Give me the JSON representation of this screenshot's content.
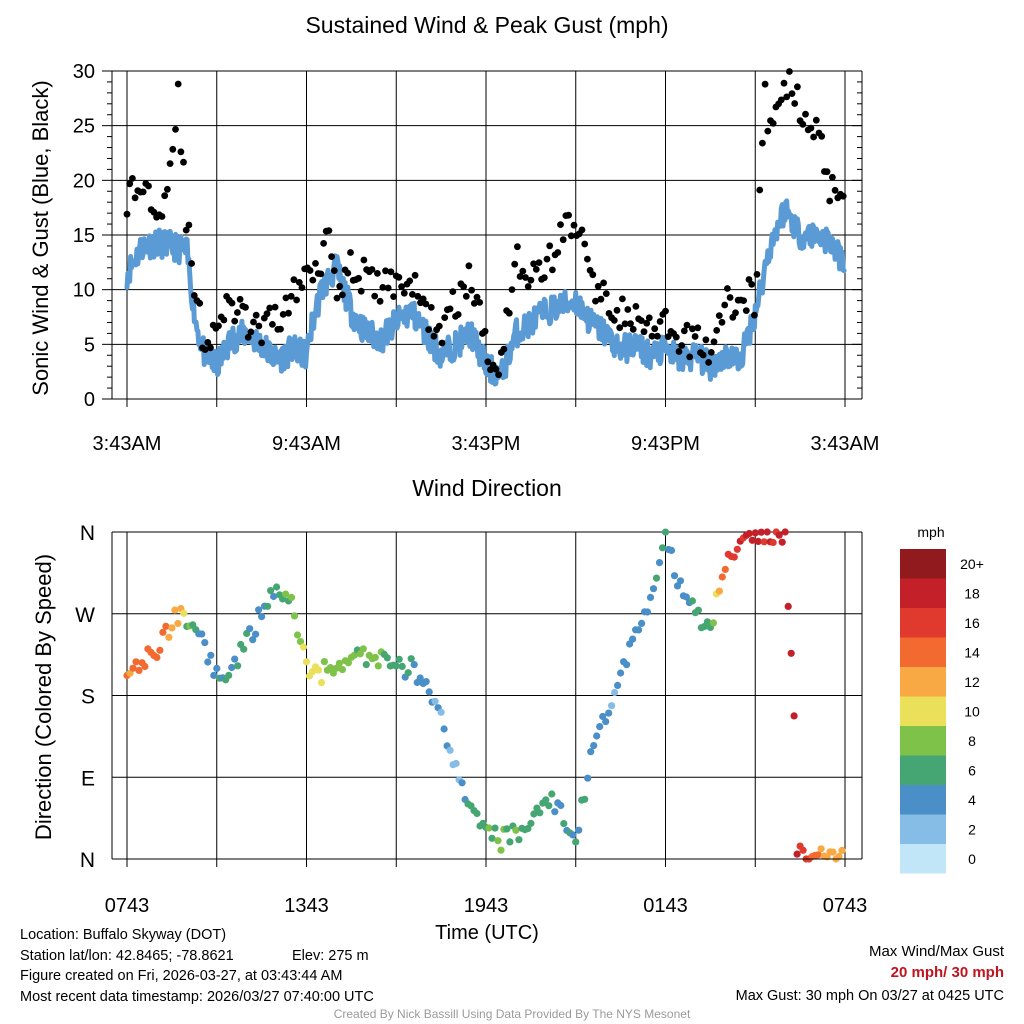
{
  "chart_data": [
    {
      "type": "line",
      "title": "Sustained Wind & Peak Gust (mph)",
      "ylabel": "Sonic Wind & Gust (Blue, Black)",
      "xlabel": "",
      "ylim": [
        0,
        30
      ],
      "yticks": [
        "0",
        "5",
        "10",
        "15",
        "20",
        "25",
        "30"
      ],
      "xticks": [
        "3:43AM",
        "9:43AM",
        "3:43PM",
        "9:43PM",
        "3:43AM"
      ],
      "x_range_hours": [
        0,
        24
      ],
      "grid": true,
      "series": [
        {
          "name": "Sustained Wind",
          "color": "#5b9bd5",
          "x_hours": [
            0,
            0.5,
            1,
            1.5,
            2,
            2.3,
            2.6,
            3,
            3.5,
            4,
            4.5,
            5,
            5.5,
            6,
            6.2,
            6.5,
            7,
            7.5,
            8,
            8.5,
            9,
            9.5,
            10,
            10.5,
            11,
            11.5,
            12,
            12.5,
            13,
            13.5,
            14,
            14.5,
            15,
            15.5,
            16,
            16.5,
            17,
            17.5,
            18,
            18.5,
            19,
            19.5,
            20,
            20.5,
            21,
            21.5,
            22,
            22.5,
            23,
            23.5,
            24
          ],
          "values": [
            11.5,
            14,
            14.3,
            14,
            13.5,
            7,
            4,
            3,
            5.5,
            6,
            5,
            3.5,
            4.5,
            4,
            7,
            10,
            12,
            8,
            6,
            5.5,
            7,
            8,
            6,
            4,
            5,
            6,
            3,
            2,
            6,
            7,
            8,
            8.5,
            9,
            7,
            6,
            4.5,
            5,
            4,
            4.5,
            3.5,
            4,
            3,
            4,
            3.5,
            8,
            14,
            17.5,
            15,
            15,
            14.5,
            12
          ]
        },
        {
          "name": "Peak Gust",
          "color": "#000000",
          "x_hours": [
            0,
            0.5,
            1,
            1.3,
            1.5,
            1.7,
            2,
            2.3,
            2.6,
            3,
            3.5,
            4,
            4.5,
            5,
            5.5,
            6,
            6.2,
            6.5,
            6.7,
            7,
            7.5,
            8,
            8.5,
            9,
            9.5,
            10,
            10.5,
            11,
            11.5,
            12,
            12.2,
            12.5,
            13,
            13.5,
            14,
            14.5,
            15,
            15.5,
            16,
            16.5,
            17,
            17.5,
            18,
            18.5,
            19,
            19.5,
            20,
            20.5,
            20.8,
            21,
            21.3,
            21.5,
            22,
            22.5,
            23,
            23.5,
            24
          ],
          "values": [
            18.5,
            19.5,
            18,
            18.5,
            23,
            27.8,
            16,
            9,
            5,
            7,
            8.5,
            7,
            6,
            7.5,
            9,
            11.5,
            12,
            13,
            16.5,
            10.5,
            12,
            11,
            10,
            11,
            10.5,
            8,
            6,
            9,
            11,
            5,
            3,
            4,
            13,
            11,
            12,
            15,
            16.5,
            11,
            9,
            8,
            7,
            6,
            6.5,
            4.5,
            6,
            4,
            9,
            8,
            10,
            9,
            28,
            24,
            29,
            27,
            25,
            19.5,
            19.5
          ]
        }
      ]
    },
    {
      "type": "scatter",
      "title": "Wind Direction",
      "ylabel": "Direction (Colored By Speed)",
      "xlabel": "Time (UTC)",
      "ylim": [
        0,
        360
      ],
      "yticks": [
        "N",
        "E",
        "S",
        "W",
        "N"
      ],
      "xticks": [
        "0743",
        "1343",
        "1943",
        "0143",
        "0743"
      ],
      "x_range_hours": [
        0,
        24
      ],
      "grid": true,
      "legend_title": "mph",
      "legend_placement": "right",
      "legend": [
        {
          "label": "20+",
          "color": "#901a1e"
        },
        {
          "label": "18",
          "color": "#c4202a"
        },
        {
          "label": "16",
          "color": "#e03a2f"
        },
        {
          "label": "14",
          "color": "#f26a30"
        },
        {
          "label": "12",
          "color": "#f8a944"
        },
        {
          "label": "10",
          "color": "#ebe05a"
        },
        {
          "label": "8",
          "color": "#7fc24a"
        },
        {
          "label": "6",
          "color": "#46a673"
        },
        {
          "label": "4",
          "color": "#4a8fc7"
        },
        {
          "label": "2",
          "color": "#86bde6"
        },
        {
          "label": "0",
          "color": "#c0e6f8"
        }
      ],
      "points_hours": [
        0,
        0.5,
        1,
        1.5,
        1.8,
        2,
        2.5,
        3,
        3.5,
        4,
        4.5,
        5,
        5.5,
        6,
        6.5,
        7,
        7.5,
        8,
        8.5,
        9,
        9.5,
        10,
        10.5,
        11,
        11.5,
        12,
        12.5,
        13,
        13.5,
        14,
        14.5,
        15,
        15.5,
        16,
        16.5,
        17,
        17.5,
        18,
        18.5,
        19,
        19.5,
        20,
        20.5,
        21,
        21.5,
        22,
        22.5,
        23,
        23.5,
        24
      ],
      "directions_deg": [
        213,
        220,
        230,
        260,
        275,
        265,
        245,
        200,
        210,
        240,
        270,
        300,
        285,
        210,
        205,
        215,
        220,
        222,
        218,
        212,
        210,
        195,
        160,
        95,
        50,
        30,
        20,
        30,
        40,
        70,
        50,
        10,
        120,
        160,
        200,
        250,
        290,
        350,
        300,
        270,
        255,
        320,
        350,
        355,
        358,
        360,
        5,
        3,
        2,
        0
      ],
      "speeds_mph": [
        13,
        14,
        14,
        13,
        12,
        7,
        4,
        4,
        5,
        5,
        4,
        6,
        7,
        10,
        9,
        7,
        7,
        7,
        7,
        6,
        5,
        4,
        3,
        2,
        6,
        7,
        8,
        7,
        6,
        6,
        5,
        5,
        4,
        3,
        4,
        4,
        4,
        5,
        4,
        6,
        6,
        15,
        17,
        18,
        17,
        18,
        17,
        14,
        12,
        12
      ]
    }
  ],
  "info": {
    "location": "Location: Buffalo Skyway (DOT)",
    "station": "Station lat/lon: 42.8465; -78.8621",
    "elev": "Elev: 275 m",
    "created": "Figure created on Fri, 2026-03-27, at 03:43:44 AM",
    "recent": "Most recent data timestamp: 2026/03/27 07:40:00 UTC"
  },
  "max": {
    "header": "Max Wind/Max Gust",
    "value": "20 mph/ 30 mph",
    "gust": "Max Gust: 30 mph On 03/27 at 0425 UTC"
  },
  "credit": "Created By Nick Bassill Using Data Provided By The NYS Mesonet"
}
